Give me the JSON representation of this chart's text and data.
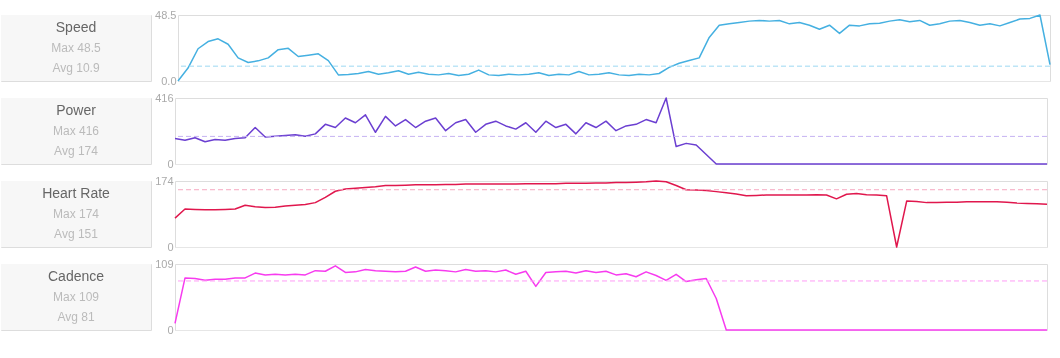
{
  "chart_data": [
    {
      "type": "line",
      "title": "Speed",
      "annotations": [
        "Max 48.5",
        "Avg 10.9"
      ],
      "tick_labels": "y",
      "ylim": [
        0,
        48.5
      ],
      "yticks": [
        {
          "value": 0,
          "label": "0.0"
        },
        48.5
      ],
      "ref_lines": [
        {
          "axis": "y",
          "value": 10.9,
          "color": "#9dd8f2",
          "line_style": "dashed"
        }
      ],
      "categories": [
        null,
        null,
        null,
        null,
        null,
        null,
        null,
        null,
        null,
        null,
        null,
        null,
        null,
        null,
        null,
        null,
        null,
        null,
        null,
        null,
        null,
        null,
        null,
        null,
        null,
        null,
        null,
        null,
        null,
        null,
        null,
        null,
        null,
        null,
        null,
        null,
        null,
        null,
        null,
        null,
        null,
        null,
        null,
        null,
        null,
        null,
        null,
        null,
        null,
        null,
        null,
        null,
        null,
        null,
        null,
        null,
        null,
        null,
        null,
        null,
        null,
        null,
        null,
        null,
        null,
        null,
        null,
        null,
        null,
        null,
        null,
        null,
        null,
        null,
        null,
        null,
        null,
        null,
        null,
        null,
        null,
        null,
        null,
        null,
        null,
        null,
        null,
        null
      ],
      "series": [
        {
          "color": "#45b0e1",
          "values": [
            0,
            9.5,
            23.7,
            29,
            31,
            27,
            17,
            13.6,
            14.8,
            17,
            23,
            24,
            18,
            19,
            20,
            15,
            4.5,
            4.8,
            5.5,
            7,
            5,
            6,
            7.5,
            5,
            6.5,
            5,
            4.5,
            5.5,
            4,
            5,
            8,
            4.5,
            4,
            5,
            4.5,
            5,
            6,
            4,
            5,
            4.5,
            7,
            4.5,
            5,
            6,
            4.5,
            4,
            5,
            4.5,
            5.5,
            10,
            13,
            15,
            17,
            32,
            41,
            42,
            43,
            44,
            44.5,
            44,
            44.5,
            42,
            43,
            41,
            38,
            41,
            35,
            41,
            40.5,
            42,
            42.5,
            44,
            45,
            43.5,
            44.5,
            41,
            42,
            44,
            44.5,
            43,
            41,
            42,
            40.5,
            43,
            45.5,
            46,
            48.5,
            12
          ]
        }
      ]
    },
    {
      "type": "line",
      "title": "Power",
      "annotations": [
        "Max 416",
        "Avg 174"
      ],
      "tick_labels": "y",
      "ylim": [
        0,
        416
      ],
      "yticks": [
        0,
        416
      ],
      "ref_lines": [
        {
          "axis": "y",
          "value": 174,
          "color": "#c5b2f2",
          "line_style": "dashed"
        }
      ],
      "categories": [
        null,
        null,
        null,
        null,
        null,
        null,
        null,
        null,
        null,
        null,
        null,
        null,
        null,
        null,
        null,
        null,
        null,
        null,
        null,
        null,
        null,
        null,
        null,
        null,
        null,
        null,
        null,
        null,
        null,
        null,
        null,
        null,
        null,
        null,
        null,
        null,
        null,
        null,
        null,
        null,
        null,
        null,
        null,
        null,
        null,
        null,
        null,
        null,
        null,
        null,
        null,
        null,
        null,
        null,
        null,
        null,
        null,
        null,
        null,
        null,
        null,
        null,
        null,
        null,
        null,
        null,
        null,
        null,
        null,
        null,
        null,
        null,
        null,
        null,
        null,
        null,
        null,
        null,
        null,
        null,
        null,
        null,
        null,
        null,
        null,
        null,
        null,
        null
      ],
      "series": [
        {
          "color": "#6b3fd1",
          "values": [
            160,
            150,
            165,
            140,
            155,
            150,
            160,
            165,
            230,
            170,
            175,
            180,
            185,
            175,
            190,
            250,
            230,
            290,
            260,
            310,
            200,
            300,
            240,
            280,
            230,
            270,
            290,
            210,
            260,
            280,
            200,
            250,
            270,
            240,
            220,
            260,
            200,
            270,
            230,
            250,
            190,
            260,
            230,
            270,
            210,
            240,
            250,
            280,
            260,
            416,
            110,
            130,
            120,
            60,
            0,
            0,
            0,
            0,
            0,
            0,
            0,
            0,
            0,
            0,
            0,
            0,
            0,
            0,
            0,
            0,
            0,
            0,
            0,
            0,
            0,
            0,
            0,
            0,
            0,
            0,
            0,
            0,
            0,
            0,
            0,
            0,
            0,
            0
          ]
        }
      ]
    },
    {
      "type": "line",
      "title": "Heart Rate",
      "annotations": [
        "Max 174",
        "Avg 151"
      ],
      "tick_labels": "y",
      "ylim": [
        0,
        174
      ],
      "yticks": [
        0,
        174
      ],
      "ref_lines": [
        {
          "axis": "y",
          "value": 151,
          "color": "#f7a8c0",
          "line_style": "dashed"
        }
      ],
      "categories": [
        null,
        null,
        null,
        null,
        null,
        null,
        null,
        null,
        null,
        null,
        null,
        null,
        null,
        null,
        null,
        null,
        null,
        null,
        null,
        null,
        null,
        null,
        null,
        null,
        null,
        null,
        null,
        null,
        null,
        null,
        null,
        null,
        null,
        null,
        null,
        null,
        null,
        null,
        null,
        null,
        null,
        null,
        null,
        null,
        null,
        null,
        null,
        null,
        null,
        null,
        null,
        null,
        null,
        null,
        null,
        null,
        null,
        null,
        null,
        null,
        null,
        null,
        null,
        null,
        null,
        null,
        null,
        null,
        null,
        null,
        null,
        null,
        null,
        null,
        null,
        null,
        null,
        null,
        null,
        null,
        null,
        null,
        null,
        null,
        null,
        null,
        null,
        null
      ],
      "series": [
        {
          "color": "#e0174d",
          "values": [
            76,
            100,
            99,
            98,
            98,
            99,
            100,
            110,
            106,
            104,
            105,
            108,
            110,
            112,
            117,
            131,
            147,
            153,
            155,
            157,
            159,
            162,
            162,
            163,
            164,
            164,
            164,
            165,
            165,
            166,
            166,
            166,
            166,
            166,
            166,
            167,
            167,
            167,
            167,
            168,
            168,
            168,
            169,
            169,
            170,
            170,
            171,
            172,
            174,
            172,
            162,
            151,
            150,
            149,
            146,
            143,
            140,
            135,
            136,
            137,
            137,
            137,
            137,
            137,
            138,
            137,
            127,
            139,
            141,
            138,
            137,
            135,
            0,
            121,
            120,
            117,
            117,
            118,
            118,
            119,
            119,
            119,
            119,
            118,
            116,
            115,
            114,
            113
          ]
        }
      ]
    },
    {
      "type": "line",
      "title": "Cadence",
      "annotations": [
        "Max 109",
        "Avg 81"
      ],
      "tick_labels": "y",
      "ylim": [
        0,
        109
      ],
      "yticks": [
        0,
        109
      ],
      "ref_lines": [
        {
          "axis": "y",
          "value": 81,
          "color": "#ff9cf6",
          "line_style": "dashed"
        }
      ],
      "categories": [
        null,
        null,
        null,
        null,
        null,
        null,
        null,
        null,
        null,
        null,
        null,
        null,
        null,
        null,
        null,
        null,
        null,
        null,
        null,
        null,
        null,
        null,
        null,
        null,
        null,
        null,
        null,
        null,
        null,
        null,
        null,
        null,
        null,
        null,
        null,
        null,
        null,
        null,
        null,
        null,
        null,
        null,
        null,
        null,
        null,
        null,
        null,
        null,
        null,
        null,
        null,
        null,
        null,
        null,
        null,
        null,
        null,
        null,
        null,
        null,
        null,
        null,
        null,
        null,
        null,
        null,
        null,
        null,
        null,
        null,
        null,
        null,
        null,
        null,
        null,
        null,
        null,
        null,
        null,
        null,
        null,
        null,
        null,
        null,
        null,
        null,
        null,
        null
      ],
      "series": [
        {
          "color": "#f73bef",
          "values": [
            11,
            86,
            85,
            82,
            84,
            84,
            86,
            86,
            94,
            91,
            92,
            91,
            92,
            91,
            98,
            97,
            106,
            95,
            96,
            100,
            98,
            97,
            96,
            97,
            104,
            97,
            99,
            98,
            96,
            100,
            97,
            98,
            96,
            99,
            92,
            97,
            72,
            95,
            96,
            97,
            94,
            98,
            95,
            97,
            91,
            93,
            88,
            96,
            90,
            82,
            92,
            80,
            83,
            85,
            52,
            0,
            0,
            0,
            0,
            0,
            0,
            0,
            0,
            0,
            0,
            0,
            0,
            0,
            0,
            0,
            0,
            0,
            0,
            0,
            0,
            0,
            0,
            0,
            0,
            0,
            0,
            0,
            0,
            0,
            0,
            0,
            0,
            0
          ]
        }
      ]
    }
  ]
}
